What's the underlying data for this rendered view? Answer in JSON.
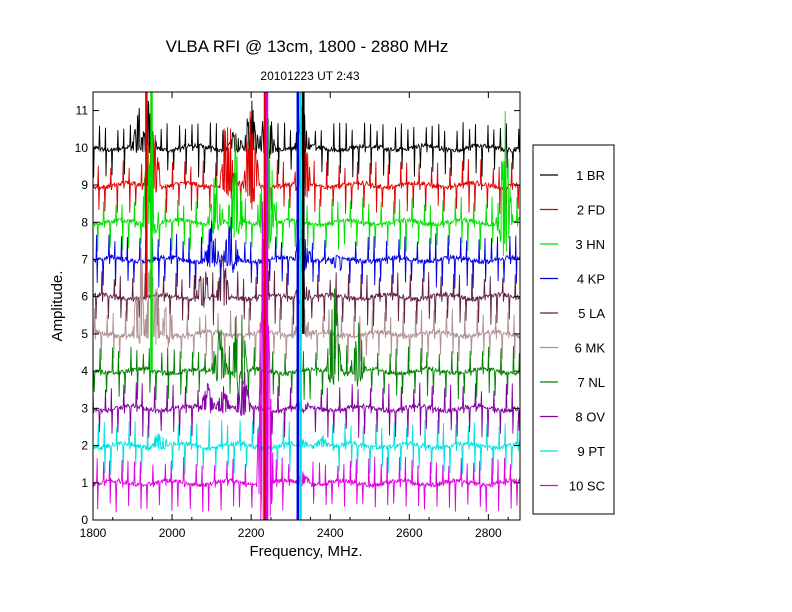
{
  "chart_data": {
    "type": "line",
    "title": "VLBA RFI @ 13cm, 1800 - 2880 MHz",
    "subtitle": "20101223   UT 2:43",
    "xlabel": "Frequency, MHz.",
    "ylabel": "Amplitude.",
    "xlim": [
      1800,
      2880
    ],
    "ylim": [
      0,
      11.5
    ],
    "xticks": [
      1800,
      2000,
      2200,
      2400,
      2600,
      2800
    ],
    "yticks": [
      0,
      1,
      2,
      3,
      4,
      5,
      6,
      7,
      8,
      9,
      10,
      11
    ],
    "grid": false,
    "legend_position": "right",
    "spike_period_mhz": 15.6,
    "series": [
      {
        "name": "1 BR",
        "color": "#000000",
        "baseline": 10,
        "rfi": [
          [
            2160,
            10.6
          ],
          [
            2200,
            11.5
          ],
          [
            2240,
            11.5
          ],
          [
            2330,
            11.5
          ],
          [
            1920,
            11.5
          ],
          [
            1940,
            11.5
          ]
        ]
      },
      {
        "name": "2 FD",
        "color": "#e00000",
        "baseline": 9,
        "rfi": [
          [
            1950,
            11.5
          ],
          [
            2140,
            11.5
          ],
          [
            2200,
            11.5
          ],
          [
            2330,
            11.5
          ]
        ]
      },
      {
        "name": "3 HN",
        "color": "#00e000",
        "baseline": 8,
        "rfi": [
          [
            1945,
            11.5
          ],
          [
            2110,
            9.6
          ],
          [
            2160,
            10.4
          ],
          [
            2240,
            11.5
          ],
          [
            2840,
            11.5
          ]
        ]
      },
      {
        "name": "4 KP",
        "color": "#0000e0",
        "baseline": 7,
        "rfi": [
          [
            2100,
            8.2
          ],
          [
            2150,
            8.5
          ],
          [
            2330,
            8.5
          ],
          [
            2420,
            6.5
          ]
        ]
      },
      {
        "name": "5 LA",
        "color": "#602040",
        "baseline": 6,
        "rfi": [
          [
            2080,
            7.0
          ],
          [
            2130,
            7.2
          ],
          [
            2330,
            7.0
          ]
        ]
      },
      {
        "name": "6 MK",
        "color": "#b09090",
        "baseline": 5,
        "rfi": [
          [
            1920,
            7.5
          ],
          [
            1950,
            7.8
          ],
          [
            1990,
            6.2
          ],
          [
            2330,
            6.0
          ]
        ]
      },
      {
        "name": "7 NL",
        "color": "#008000",
        "baseline": 4,
        "rfi": [
          [
            2120,
            5.5
          ],
          [
            2170,
            6.8
          ],
          [
            2410,
            6.5
          ],
          [
            2470,
            5.5
          ]
        ]
      },
      {
        "name": "8 OV",
        "color": "#8000a0",
        "baseline": 3,
        "rfi": [
          [
            2090,
            3.7
          ],
          [
            2130,
            3.6
          ],
          [
            2180,
            4.2
          ],
          [
            2330,
            3.4
          ]
        ]
      },
      {
        "name": "9 PT",
        "color": "#00e0e0",
        "baseline": 2,
        "rfi": [
          [
            1970,
            2.6
          ],
          [
            2330,
            2.2
          ],
          [
            2380,
            2.3
          ]
        ]
      },
      {
        "name": "10 SC",
        "color": "#e000e0",
        "baseline": 1,
        "rfi": [
          [
            2235,
            11.5
          ],
          [
            2330,
            1.4
          ]
        ]
      }
    ],
    "vertical_spikes": [
      {
        "x": 1935,
        "color": "#e00000",
        "y": [
          6,
          11.5
        ]
      },
      {
        "x": 1948,
        "color": "#00e000",
        "y": [
          4,
          11.5
        ]
      },
      {
        "x": 2235,
        "color": "#e00000",
        "y": [
          0,
          11.5
        ]
      },
      {
        "x": 2240,
        "color": "#e000e0",
        "y": [
          0,
          11.5
        ]
      },
      {
        "x": 2318,
        "color": "#0000e0",
        "y": [
          0,
          11.5
        ]
      },
      {
        "x": 2325,
        "color": "#00e0e0",
        "y": [
          0,
          11.5
        ]
      },
      {
        "x": 2332,
        "color": "#000000",
        "y": [
          5,
          11.5
        ]
      }
    ]
  }
}
